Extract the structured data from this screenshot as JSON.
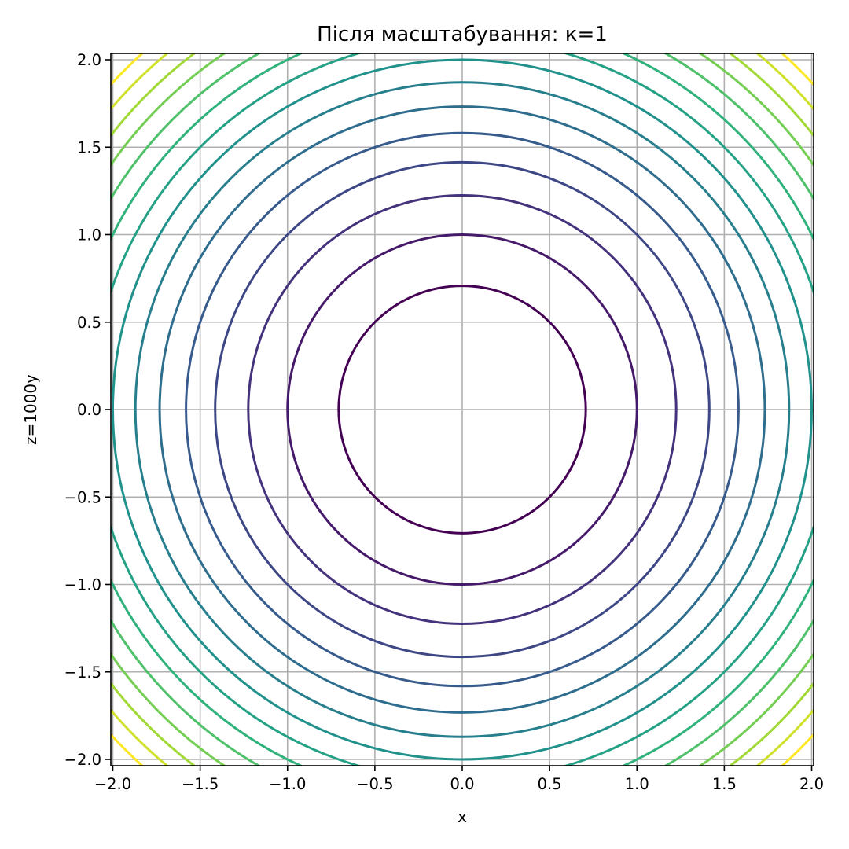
{
  "chart_data": {
    "type": "contour",
    "title": "Після масштабування: к=1",
    "xlabel": "x",
    "ylabel": "z=1000y",
    "xlim": [
      -2.0,
      2.0
    ],
    "ylim": [
      -2.0,
      2.0
    ],
    "xticks": [
      -2.0,
      -1.5,
      -1.0,
      -0.5,
      0.0,
      0.5,
      1.0,
      1.5,
      2.0
    ],
    "yticks": [
      -2.0,
      -1.5,
      -1.0,
      -0.5,
      0.0,
      0.5,
      1.0,
      1.5,
      2.0
    ],
    "xtick_labels": [
      "−2.0",
      "−1.5",
      "−1.0",
      "−0.5",
      "0.0",
      "0.5",
      "1.0",
      "1.5",
      "2.0"
    ],
    "ytick_labels": [
      "−2.0",
      "−1.5",
      "−1.0",
      "−0.5",
      "0.0",
      "0.5",
      "1.0",
      "1.5",
      "2.0"
    ],
    "grid": true,
    "colormap": "viridis",
    "function": "x^2 + z^2",
    "levels": [
      0.5,
      1.0,
      1.5,
      2.0,
      2.5,
      3.0,
      3.5,
      4.0,
      4.5,
      5.0,
      5.5,
      6.0,
      6.5,
      7.0,
      7.5
    ],
    "level_colors": [
      "#440154",
      "#472d7b",
      "#3b528b",
      "#2c728e",
      "#21918c",
      "#28ae80",
      "#5ec962",
      "#addc30",
      "#fde725"
    ]
  }
}
